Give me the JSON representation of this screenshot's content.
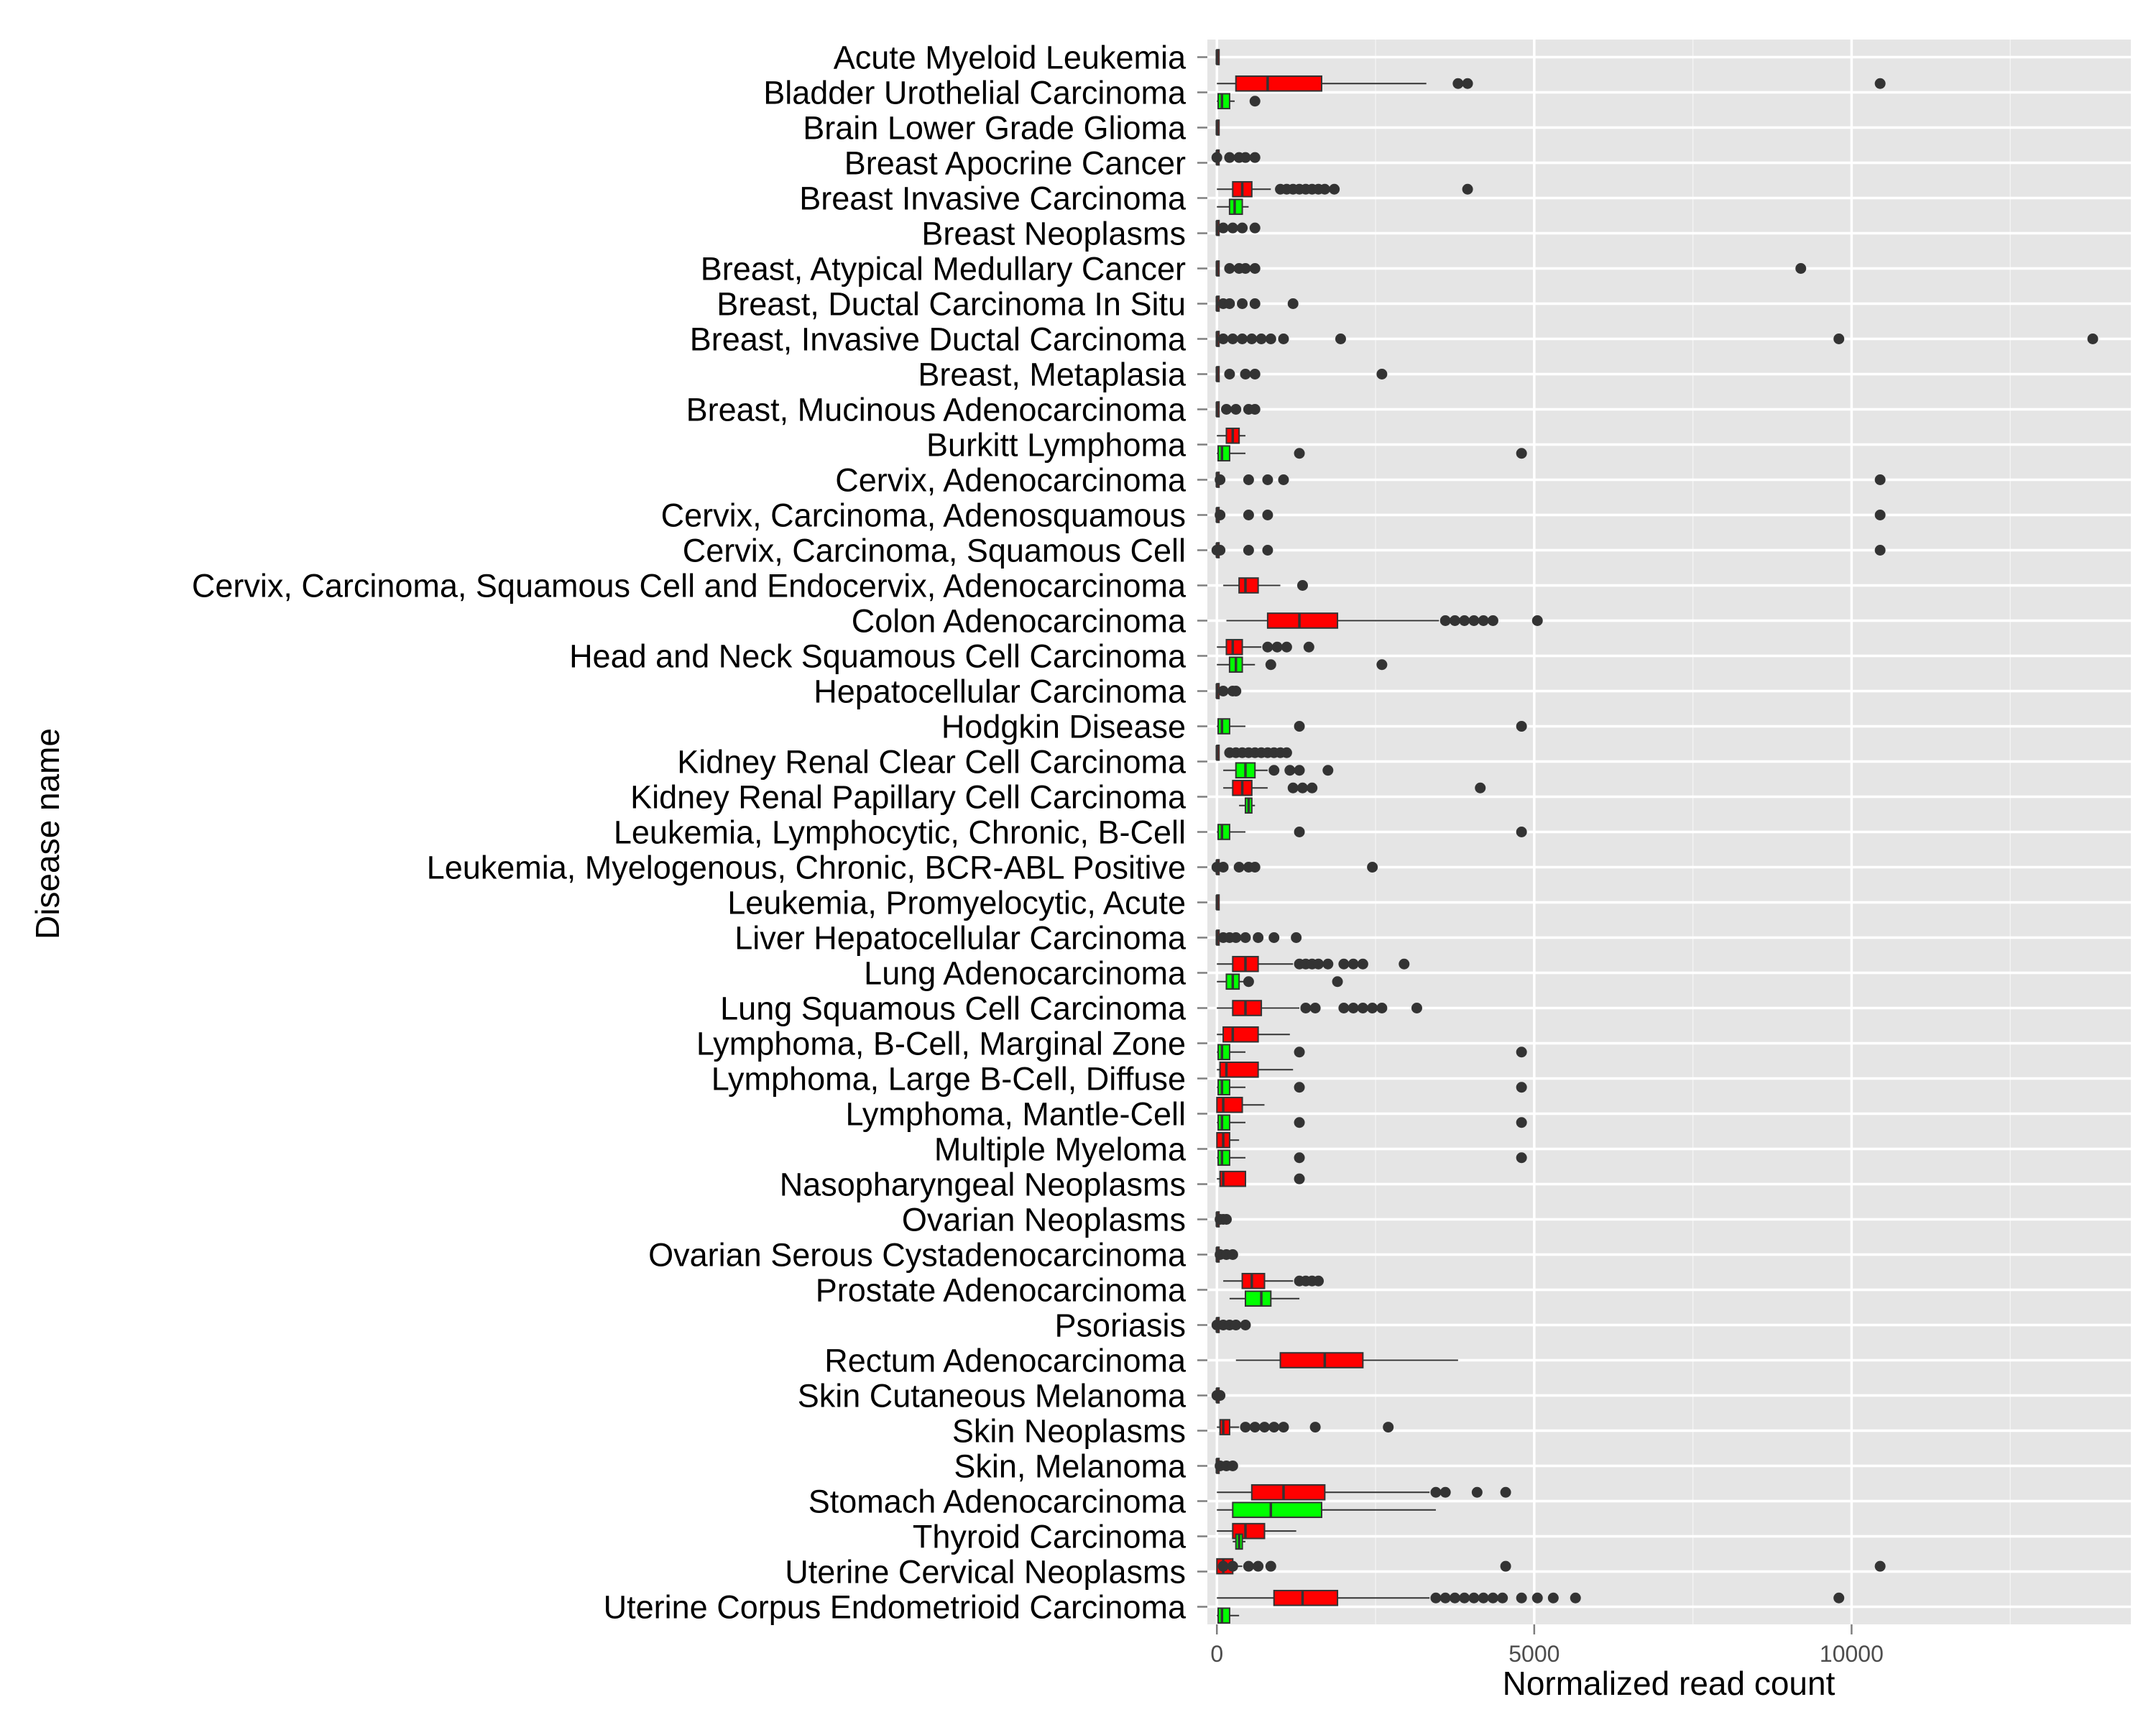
{
  "chart_data": {
    "type": "boxplot",
    "xlabel": "Normalized read count",
    "ylabel": "Disease name",
    "xlim": [
      -150,
      14400
    ],
    "x_ticks": [
      0,
      5000,
      10000
    ],
    "x_tick_labels": [
      "0",
      "5000",
      "10000"
    ],
    "grid": true,
    "colors": {
      "red_box": "#ff0000",
      "green_box": "#00ff00",
      "panel": "#e5e5e5",
      "grid": "#ffffff",
      "outlier": "#333333"
    },
    "categories": [
      "Acute Myeloid Leukemia",
      "Bladder Urothelial Carcinoma",
      "Brain Lower Grade Glioma",
      "Breast Apocrine Cancer",
      "Breast Invasive Carcinoma",
      "Breast Neoplasms",
      "Breast, Atypical Medullary Cancer",
      "Breast, Ductal Carcinoma In Situ",
      "Breast, Invasive Ductal Carcinoma",
      "Breast, Metaplasia",
      "Breast, Mucinous Adenocarcinoma",
      "Burkitt Lymphoma",
      "Cervix, Adenocarcinoma",
      "Cervix, Carcinoma, Adenosquamous",
      "Cervix, Carcinoma, Squamous Cell",
      "Cervix, Carcinoma, Squamous Cell and Endocervix, Adenocarcinoma",
      "Colon Adenocarcinoma",
      "Head and Neck Squamous Cell Carcinoma",
      "Hepatocellular Carcinoma",
      "Hodgkin Disease",
      "Kidney Renal Clear Cell Carcinoma",
      "Kidney Renal Papillary Cell Carcinoma",
      "Leukemia, Lymphocytic, Chronic, B-Cell",
      "Leukemia, Myelogenous, Chronic, BCR-ABL Positive",
      "Leukemia, Promyelocytic, Acute",
      "Liver Hepatocellular Carcinoma",
      "Lung Adenocarcinoma",
      "Lung Squamous Cell Carcinoma",
      "Lymphoma, B-Cell, Marginal Zone",
      "Lymphoma, Large B-Cell, Diffuse",
      "Lymphoma, Mantle-Cell",
      "Multiple Myeloma",
      "Nasopharyngeal Neoplasms",
      "Ovarian Neoplasms",
      "Ovarian Serous Cystadenocarcinoma",
      "Prostate Adenocarcinoma",
      "Psoriasis",
      "Rectum Adenocarcinoma",
      "Skin Cutaneous Melanoma",
      "Skin Neoplasms",
      "Skin, Melanoma",
      "Stomach Adenocarcinoma",
      "Thyroid Carcinoma",
      "Uterine Cervical Neoplasms",
      "Uterine Corpus Endometrioid Carcinoma"
    ],
    "boxes": [
      {
        "cat": 0,
        "series": "red",
        "offset": 0,
        "min": 0,
        "q1": 0,
        "median": 0,
        "q3": 10,
        "max": 30,
        "outliers": []
      },
      {
        "cat": 1,
        "series": "red",
        "offset": -0.25,
        "min": 0,
        "q1": 300,
        "median": 800,
        "q3": 1650,
        "max": 3300,
        "outliers": [
          3800,
          3950,
          10450
        ]
      },
      {
        "cat": 1,
        "series": "green",
        "offset": 0.25,
        "min": 0,
        "q1": 20,
        "median": 80,
        "q3": 200,
        "max": 280,
        "outliers": [
          600
        ]
      },
      {
        "cat": 2,
        "series": "red",
        "offset": 0,
        "min": 0,
        "q1": 0,
        "median": 0,
        "q3": 10,
        "max": 20,
        "outliers": []
      },
      {
        "cat": 3,
        "series": "red",
        "offset": -0.15,
        "min": 0,
        "q1": 0,
        "median": 0,
        "q3": 10,
        "max": 20,
        "outliers": [
          0,
          200,
          350,
          450,
          600
        ]
      },
      {
        "cat": 4,
        "series": "red",
        "offset": -0.25,
        "min": 0,
        "q1": 250,
        "median": 400,
        "q3": 550,
        "max": 850,
        "outliers": [
          1000,
          1100,
          1200,
          1300,
          1400,
          1500,
          1600,
          1700,
          1850,
          3950
        ]
      },
      {
        "cat": 4,
        "series": "green",
        "offset": 0.25,
        "min": 0,
        "q1": 200,
        "median": 280,
        "q3": 400,
        "max": 500,
        "outliers": []
      },
      {
        "cat": 5,
        "series": "red",
        "offset": -0.15,
        "min": 0,
        "q1": 0,
        "median": 0,
        "q3": 10,
        "max": 20,
        "outliers": [
          100,
          250,
          400,
          600
        ]
      },
      {
        "cat": 6,
        "series": "red",
        "offset": 0,
        "min": 0,
        "q1": 0,
        "median": 0,
        "q3": 10,
        "max": 20,
        "outliers": [
          200,
          350,
          450,
          600,
          9200
        ]
      },
      {
        "cat": 7,
        "series": "red",
        "offset": 0,
        "min": 0,
        "q1": 0,
        "median": 0,
        "q3": 10,
        "max": 20,
        "outliers": [
          100,
          200,
          400,
          600,
          1200
        ]
      },
      {
        "cat": 8,
        "series": "red",
        "offset": 0,
        "min": 0,
        "q1": 0,
        "median": 0,
        "q3": 10,
        "max": 20,
        "outliers": [
          100,
          250,
          400,
          550,
          700,
          850,
          1050,
          1950,
          9800,
          13800
        ]
      },
      {
        "cat": 9,
        "series": "red",
        "offset": 0,
        "min": 0,
        "q1": 0,
        "median": 0,
        "q3": 10,
        "max": 20,
        "outliers": [
          200,
          450,
          600,
          2600
        ]
      },
      {
        "cat": 10,
        "series": "red",
        "offset": 0,
        "min": 0,
        "q1": 0,
        "median": 0,
        "q3": 10,
        "max": 20,
        "outliers": [
          150,
          300,
          500,
          600
        ]
      },
      {
        "cat": 11,
        "series": "red",
        "offset": -0.25,
        "min": 0,
        "q1": 150,
        "median": 250,
        "q3": 350,
        "max": 450,
        "outliers": []
      },
      {
        "cat": 11,
        "series": "green",
        "offset": 0.25,
        "min": 0,
        "q1": 20,
        "median": 80,
        "q3": 200,
        "max": 450,
        "outliers": [
          1300,
          4800
        ]
      },
      {
        "cat": 12,
        "series": "red",
        "offset": 0,
        "min": 0,
        "q1": 0,
        "median": 0,
        "q3": 10,
        "max": 20,
        "outliers": [
          50,
          500,
          800,
          1050,
          10450
        ]
      },
      {
        "cat": 13,
        "series": "red",
        "offset": 0,
        "min": 0,
        "q1": 0,
        "median": 0,
        "q3": 10,
        "max": 20,
        "outliers": [
          50,
          500,
          800,
          10450
        ]
      },
      {
        "cat": 14,
        "series": "red",
        "offset": 0,
        "min": 0,
        "q1": 0,
        "median": 0,
        "q3": 10,
        "max": 20,
        "outliers": [
          0,
          50,
          500,
          800,
          10450
        ]
      },
      {
        "cat": 15,
        "series": "red",
        "offset": 0,
        "min": 100,
        "q1": 350,
        "median": 450,
        "q3": 650,
        "max": 1000,
        "outliers": [
          1350
        ]
      },
      {
        "cat": 16,
        "series": "red",
        "offset": 0,
        "min": 150,
        "q1": 800,
        "median": 1300,
        "q3": 1900,
        "max": 3500,
        "outliers": [
          3600,
          3750,
          3900,
          4050,
          4200,
          4350,
          5050
        ]
      },
      {
        "cat": 17,
        "series": "red",
        "offset": -0.25,
        "min": 0,
        "q1": 150,
        "median": 250,
        "q3": 400,
        "max": 700,
        "outliers": [
          800,
          950,
          1100,
          1450
        ]
      },
      {
        "cat": 17,
        "series": "green",
        "offset": 0.25,
        "min": 0,
        "q1": 200,
        "median": 300,
        "q3": 400,
        "max": 600,
        "outliers": [
          850,
          2600
        ]
      },
      {
        "cat": 18,
        "series": "red",
        "offset": 0,
        "min": 0,
        "q1": 0,
        "median": 0,
        "q3": 10,
        "max": 20,
        "outliers": [
          100,
          250,
          300
        ]
      },
      {
        "cat": 19,
        "series": "green",
        "offset": 0,
        "min": 0,
        "q1": 20,
        "median": 80,
        "q3": 200,
        "max": 450,
        "outliers": [
          1300,
          4800
        ]
      },
      {
        "cat": 20,
        "series": "red",
        "offset": -0.25,
        "min": 0,
        "q1": 0,
        "median": 0,
        "q3": 10,
        "max": 20,
        "outliers": [
          200,
          300,
          400,
          500,
          600,
          700,
          800,
          900,
          1000,
          1100
        ]
      },
      {
        "cat": 20,
        "series": "green",
        "offset": 0.25,
        "min": 100,
        "q1": 300,
        "median": 450,
        "q3": 600,
        "max": 800,
        "outliers": [
          900,
          1150,
          1300,
          1750
        ]
      },
      {
        "cat": 21,
        "series": "red",
        "offset": -0.25,
        "min": 100,
        "q1": 250,
        "median": 400,
        "q3": 550,
        "max": 800,
        "outliers": [
          1200,
          1350,
          1500,
          4150
        ]
      },
      {
        "cat": 21,
        "series": "green",
        "offset": 0.25,
        "min": 350,
        "q1": 450,
        "median": 500,
        "q3": 550,
        "max": 600,
        "outliers": []
      },
      {
        "cat": 22,
        "series": "green",
        "offset": 0,
        "min": 0,
        "q1": 20,
        "median": 80,
        "q3": 200,
        "max": 450,
        "outliers": [
          1300,
          4800
        ]
      },
      {
        "cat": 23,
        "series": "red",
        "offset": 0,
        "min": 0,
        "q1": 0,
        "median": 0,
        "q3": 10,
        "max": 20,
        "outliers": [
          0,
          100,
          350,
          500,
          600,
          2450
        ]
      },
      {
        "cat": 24,
        "series": "red",
        "offset": 0,
        "min": 0,
        "q1": 0,
        "median": 0,
        "q3": 10,
        "max": 20,
        "outliers": []
      },
      {
        "cat": 25,
        "series": "red",
        "offset": 0,
        "min": 0,
        "q1": 0,
        "median": 0,
        "q3": 10,
        "max": 20,
        "outliers": [
          100,
          200,
          300,
          450,
          650,
          900,
          1250
        ]
      },
      {
        "cat": 26,
        "series": "red",
        "offset": -0.25,
        "min": 0,
        "q1": 250,
        "median": 450,
        "q3": 650,
        "max": 1200,
        "outliers": [
          1300,
          1400,
          1500,
          1600,
          1750,
          2000,
          2150,
          2300,
          2950
        ]
      },
      {
        "cat": 26,
        "series": "green",
        "offset": 0.25,
        "min": 0,
        "q1": 150,
        "median": 250,
        "q3": 350,
        "max": 450,
        "outliers": [
          500,
          1900
        ]
      },
      {
        "cat": 27,
        "series": "red",
        "offset": 0,
        "min": 0,
        "q1": 250,
        "median": 450,
        "q3": 700,
        "max": 1300,
        "outliers": [
          1400,
          1550,
          2000,
          2150,
          2300,
          2450,
          2600,
          3150
        ]
      },
      {
        "cat": 28,
        "series": "red",
        "offset": -0.25,
        "min": 0,
        "q1": 100,
        "median": 250,
        "q3": 650,
        "max": 1150,
        "outliers": []
      },
      {
        "cat": 28,
        "series": "green",
        "offset": 0.25,
        "min": 0,
        "q1": 20,
        "median": 80,
        "q3": 200,
        "max": 450,
        "outliers": [
          1300,
          4800
        ]
      },
      {
        "cat": 29,
        "series": "red",
        "offset": -0.25,
        "min": 0,
        "q1": 50,
        "median": 150,
        "q3": 650,
        "max": 1200,
        "outliers": []
      },
      {
        "cat": 29,
        "series": "green",
        "offset": 0.25,
        "min": 0,
        "q1": 20,
        "median": 80,
        "q3": 200,
        "max": 450,
        "outliers": [
          1300,
          4800
        ]
      },
      {
        "cat": 30,
        "series": "red",
        "offset": -0.25,
        "min": 0,
        "q1": 0,
        "median": 100,
        "q3": 400,
        "max": 750,
        "outliers": []
      },
      {
        "cat": 30,
        "series": "green",
        "offset": 0.25,
        "min": 0,
        "q1": 20,
        "median": 80,
        "q3": 200,
        "max": 450,
        "outliers": [
          1300,
          4800
        ]
      },
      {
        "cat": 31,
        "series": "red",
        "offset": -0.25,
        "min": 0,
        "q1": 0,
        "median": 100,
        "q3": 200,
        "max": 350,
        "outliers": []
      },
      {
        "cat": 31,
        "series": "green",
        "offset": 0.25,
        "min": 0,
        "q1": 20,
        "median": 80,
        "q3": 200,
        "max": 450,
        "outliers": [
          1300,
          4800
        ]
      },
      {
        "cat": 32,
        "series": "red",
        "offset": -0.15,
        "min": 0,
        "q1": 50,
        "median": 100,
        "q3": 450,
        "max": 450,
        "outliers": [
          1300
        ]
      },
      {
        "cat": 33,
        "series": "red",
        "offset": 0,
        "min": 0,
        "q1": 0,
        "median": 0,
        "q3": 10,
        "max": 20,
        "outliers": [
          50,
          100,
          150
        ]
      },
      {
        "cat": 34,
        "series": "red",
        "offset": 0,
        "min": 0,
        "q1": 0,
        "median": 0,
        "q3": 10,
        "max": 20,
        "outliers": [
          50,
          150,
          250
        ]
      },
      {
        "cat": 35,
        "series": "red",
        "offset": -0.25,
        "min": 100,
        "q1": 400,
        "median": 550,
        "q3": 750,
        "max": 1200,
        "outliers": [
          1300,
          1400,
          1500,
          1600
        ]
      },
      {
        "cat": 35,
        "series": "green",
        "offset": 0.25,
        "min": 200,
        "q1": 450,
        "median": 700,
        "q3": 850,
        "max": 1300,
        "outliers": []
      },
      {
        "cat": 36,
        "series": "red",
        "offset": 0,
        "min": 0,
        "q1": 0,
        "median": 0,
        "q3": 10,
        "max": 20,
        "outliers": [
          0,
          100,
          200,
          300,
          450
        ]
      },
      {
        "cat": 37,
        "series": "red",
        "offset": 0,
        "min": 300,
        "q1": 1000,
        "median": 1700,
        "q3": 2300,
        "max": 3800,
        "outliers": []
      },
      {
        "cat": 38,
        "series": "red",
        "offset": 0,
        "min": 0,
        "q1": 0,
        "median": 0,
        "q3": 10,
        "max": 20,
        "outliers": [
          0,
          50
        ]
      },
      {
        "cat": 39,
        "series": "red",
        "offset": -0.1,
        "min": 0,
        "q1": 50,
        "median": 100,
        "q3": 200,
        "max": 350,
        "outliers": [
          450,
          600,
          750,
          900,
          1050,
          1550,
          2700
        ]
      },
      {
        "cat": 40,
        "series": "red",
        "offset": 0,
        "min": 0,
        "q1": 0,
        "median": 0,
        "q3": 10,
        "max": 20,
        "outliers": [
          50,
          150,
          250
        ]
      },
      {
        "cat": 41,
        "series": "red",
        "offset": -0.25,
        "min": 0,
        "q1": 550,
        "median": 1050,
        "q3": 1700,
        "max": 3350,
        "outliers": [
          3450,
          3600,
          4100,
          4550
        ]
      },
      {
        "cat": 41,
        "series": "green",
        "offset": 0.25,
        "min": 0,
        "q1": 250,
        "median": 850,
        "q3": 1650,
        "max": 3450,
        "outliers": []
      },
      {
        "cat": 42,
        "series": "red",
        "offset": -0.15,
        "min": 0,
        "q1": 250,
        "median": 450,
        "q3": 750,
        "max": 1250,
        "outliers": []
      },
      {
        "cat": 42,
        "series": "green",
        "offset": 0.15,
        "min": 250,
        "q1": 300,
        "median": 350,
        "q3": 400,
        "max": 450,
        "outliers": []
      },
      {
        "cat": 43,
        "series": "red",
        "offset": -0.15,
        "min": 0,
        "q1": 0,
        "median": 100,
        "q3": 250,
        "max": 400,
        "outliers": [
          100,
          250,
          500,
          650,
          850,
          4550,
          10450
        ]
      },
      {
        "cat": 44,
        "series": "red",
        "offset": -0.25,
        "min": 0,
        "q1": 900,
        "median": 1350,
        "q3": 1900,
        "max": 3350,
        "outliers": [
          3450,
          3600,
          3750,
          3900,
          4050,
          4200,
          4350,
          4500,
          4800,
          5050,
          5300,
          5650,
          9800
        ]
      },
      {
        "cat": 44,
        "series": "green",
        "offset": 0.25,
        "min": 0,
        "q1": 20,
        "median": 80,
        "q3": 200,
        "max": 350,
        "outliers": []
      }
    ]
  }
}
